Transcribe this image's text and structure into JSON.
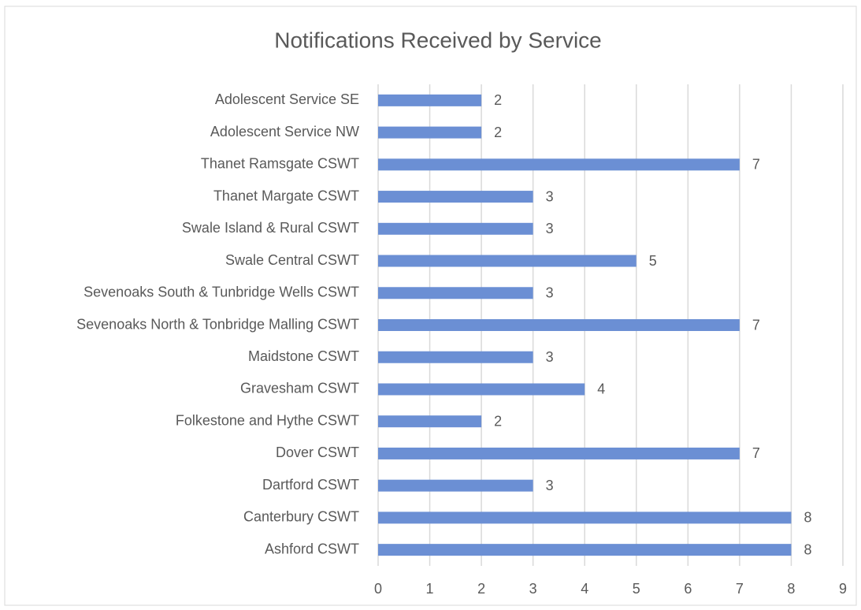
{
  "chart_data": {
    "type": "bar",
    "orientation": "horizontal",
    "title": "Notifications Received by Service",
    "categories": [
      "Adolescent Service SE",
      "Adolescent Service NW",
      "Thanet Ramsgate CSWT",
      "Thanet Margate CSWT",
      "Swale Island & Rural CSWT",
      "Swale Central CSWT",
      "Sevenoaks South & Tunbridge Wells CSWT",
      "Sevenoaks North & Tonbridge Malling CSWT",
      "Maidstone CSWT",
      "Gravesham CSWT",
      "Folkestone and Hythe CSWT",
      "Dover CSWT",
      "Dartford CSWT",
      "Canterbury CSWT",
      "Ashford CSWT"
    ],
    "values": [
      2,
      2,
      7,
      3,
      3,
      5,
      3,
      7,
      3,
      4,
      2,
      7,
      3,
      8,
      8
    ],
    "color": "#6b8fd4",
    "xlim": [
      0,
      9
    ],
    "xticks": [
      0,
      1,
      2,
      3,
      4,
      5,
      6,
      7,
      8,
      9
    ],
    "grid": true
  }
}
